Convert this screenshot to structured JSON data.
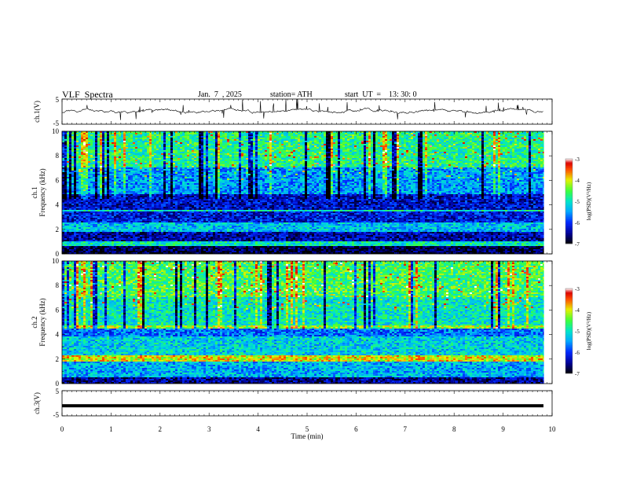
{
  "header": {
    "title": "VLF  Spectra",
    "date": "Jan.  7  , 2025",
    "station": "station= ATH",
    "start": "start  UT  =    13: 30: 0"
  },
  "chart_data": [
    {
      "type": "line",
      "panel": "waveform",
      "ylabel": "ch.1(V)",
      "ylim": [
        -5,
        5
      ],
      "yticks": [
        "5",
        "-5"
      ],
      "xlim": [
        0,
        10
      ],
      "description_series": "noisy waveform centred slightly above 0 V with frequent spikes",
      "baseline": 0.2,
      "grid": false
    },
    {
      "type": "heatmap",
      "panel": "spectrogram",
      "ylabel": "ch.1\nFrequency  (kHz)",
      "ylabel_line1": "ch.1",
      "ylabel_line2": "Frequency  (kHz)",
      "ylim": [
        0,
        10
      ],
      "yticks": [
        "0",
        "2",
        "4",
        "6",
        "8",
        "10"
      ],
      "xlim": [
        0,
        10
      ],
      "data_end": 9.83,
      "colorbar": {
        "label": "log(PSD)(V²/Hz)",
        "range": [
          -7,
          -3
        ],
        "ticks": [
          "-3",
          "-4",
          "-5",
          "-6",
          "-7"
        ]
      },
      "bands_khz": [
        {
          "from": 0,
          "to": 0.6,
          "level": -6.8
        },
        {
          "from": 0.6,
          "to": 1.0,
          "level": -5.0
        },
        {
          "from": 1.0,
          "to": 1.8,
          "level": -6.4
        },
        {
          "from": 1.8,
          "to": 2.6,
          "level": -5.3
        },
        {
          "from": 2.6,
          "to": 3.4,
          "level": -6.2
        },
        {
          "from": 3.4,
          "to": 3.6,
          "level": -5.0
        },
        {
          "from": 3.6,
          "to": 4.9,
          "level": -6.3
        },
        {
          "from": 4.9,
          "to": 7.0,
          "level": -5.5
        },
        {
          "from": 7.0,
          "to": 10.0,
          "level": -4.8
        }
      ],
      "seed": 7
    },
    {
      "type": "heatmap",
      "panel": "spectrogram",
      "ylabel_line1": "ch.2",
      "ylabel_line2": "Frequency  (kHz)",
      "ylim": [
        0,
        10
      ],
      "yticks": [
        "0",
        "2",
        "4",
        "6",
        "8",
        "10"
      ],
      "xlim": [
        0,
        10
      ],
      "data_end": 9.83,
      "colorbar": {
        "label": "log(PSD)(V²/Hz)",
        "range": [
          -7,
          -3
        ],
        "ticks": [
          "-3",
          "-4",
          "-5",
          "-6",
          "-7"
        ]
      },
      "bands_khz": [
        {
          "from": 0,
          "to": 0.5,
          "level": -6.5
        },
        {
          "from": 0.5,
          "to": 1.8,
          "level": -5.4
        },
        {
          "from": 1.8,
          "to": 2.3,
          "level": -4.0
        },
        {
          "from": 2.3,
          "to": 3.9,
          "level": -5.2
        },
        {
          "from": 3.9,
          "to": 4.5,
          "level": -5.7
        },
        {
          "from": 4.5,
          "to": 4.7,
          "level": -4.3
        },
        {
          "from": 4.7,
          "to": 7.0,
          "level": -5.0
        },
        {
          "from": 7.0,
          "to": 10.0,
          "level": -4.6
        }
      ],
      "seed": 13
    },
    {
      "type": "line",
      "panel": "waveform",
      "ylabel": "ch.3(V)",
      "ylim": [
        -5,
        5
      ],
      "yticks": [
        "5",
        "-5"
      ],
      "xlim": [
        0,
        10
      ],
      "xlabel": "Time  (min)",
      "xticks": [
        "0",
        "1",
        "2",
        "3",
        "4",
        "5",
        "6",
        "7",
        "8",
        "9",
        "10"
      ],
      "baseline": -1.0,
      "grid": false
    }
  ]
}
